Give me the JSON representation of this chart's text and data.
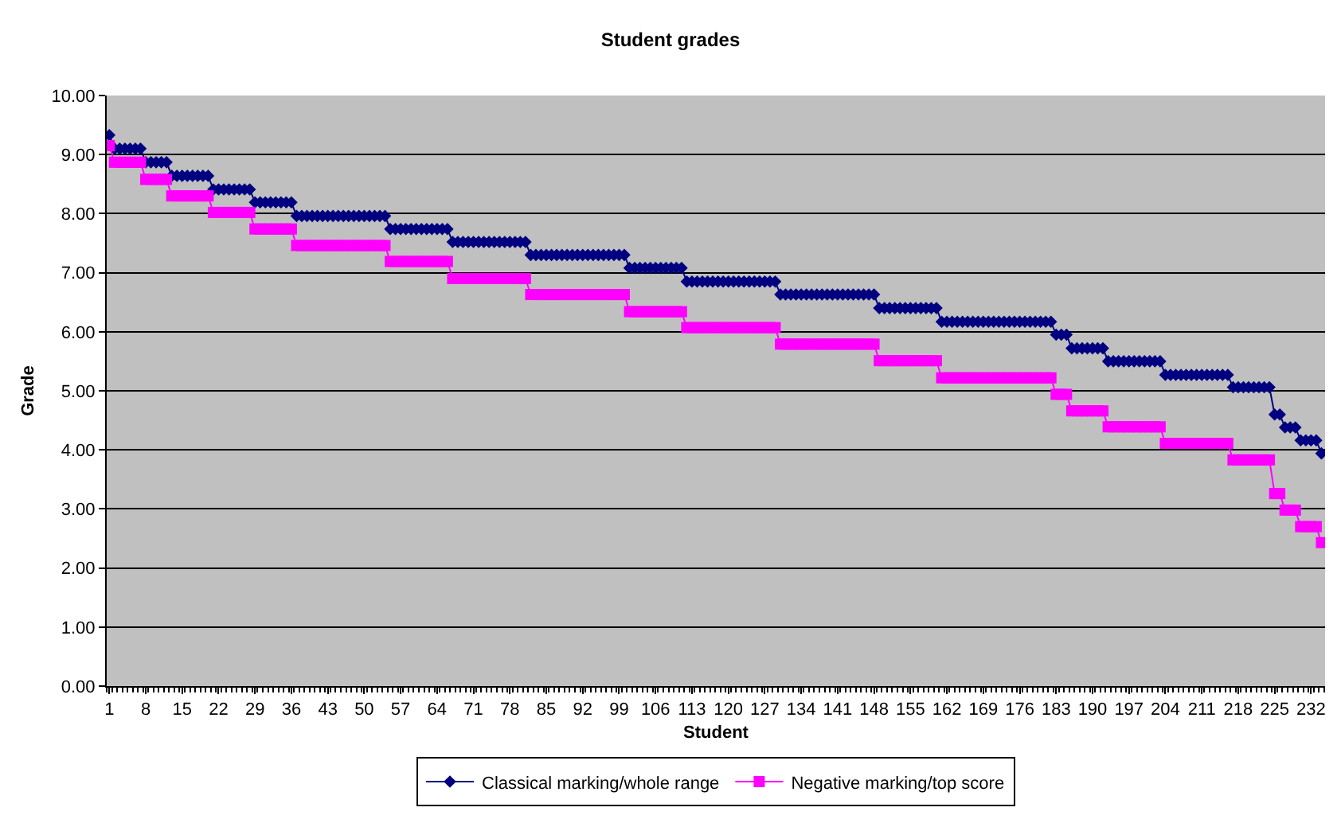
{
  "chart_data": {
    "type": "line",
    "title": "Student grades",
    "xlabel": "Student",
    "ylabel": "Grade",
    "x": [
      1,
      2,
      3,
      4,
      5,
      6,
      7,
      8,
      9,
      10,
      11,
      12,
      13,
      14,
      15,
      16,
      17,
      18,
      19,
      20,
      21,
      22,
      23,
      24,
      25,
      26,
      27,
      28,
      29,
      30,
      31,
      32,
      33,
      34,
      35,
      36,
      37,
      38,
      39,
      40,
      41,
      42,
      43,
      44,
      45,
      46,
      47,
      48,
      49,
      50,
      51,
      52,
      53,
      54,
      55,
      56,
      57,
      58,
      59,
      60,
      61,
      62,
      63,
      64,
      65,
      66,
      67,
      68,
      69,
      70,
      71,
      72,
      73,
      74,
      75,
      76,
      77,
      78,
      79,
      80,
      81,
      82,
      83,
      84,
      85,
      86,
      87,
      88,
      89,
      90,
      91,
      92,
      93,
      94,
      95,
      96,
      97,
      98,
      99,
      100,
      101,
      102,
      103,
      104,
      105,
      106,
      107,
      108,
      109,
      110,
      111,
      112,
      113,
      114,
      115,
      116,
      117,
      118,
      119,
      120,
      121,
      122,
      123,
      124,
      125,
      126,
      127,
      128,
      129,
      130,
      131,
      132,
      133,
      134,
      135,
      136,
      137,
      138,
      139,
      140,
      141,
      142,
      143,
      144,
      145,
      146,
      147,
      148,
      149,
      150,
      151,
      152,
      153,
      154,
      155,
      156,
      157,
      158,
      159,
      160,
      161,
      162,
      163,
      164,
      165,
      166,
      167,
      168,
      169,
      170,
      171,
      172,
      173,
      174,
      175,
      176,
      177,
      178,
      179,
      180,
      181,
      182,
      183,
      184,
      185,
      186,
      187,
      188,
      189,
      190,
      191,
      192,
      193,
      194,
      195,
      196,
      197,
      198,
      199,
      200,
      201,
      202,
      203,
      204,
      205,
      206,
      207,
      208,
      209,
      210,
      211,
      212,
      213,
      214,
      215,
      216,
      217,
      218,
      219,
      220,
      221,
      222,
      223,
      224,
      225,
      226,
      227,
      228,
      229,
      230,
      231,
      232,
      233,
      234
    ],
    "series": [
      {
        "name": "Classical marking/whole range",
        "color": "#000080",
        "marker": "diamond",
        "values": [
          9.33,
          9.1,
          9.1,
          9.1,
          9.1,
          9.1,
          9.1,
          8.87,
          8.87,
          8.87,
          8.87,
          8.87,
          8.64,
          8.64,
          8.64,
          8.64,
          8.64,
          8.64,
          8.64,
          8.64,
          8.41,
          8.41,
          8.41,
          8.41,
          8.41,
          8.41,
          8.41,
          8.41,
          8.19,
          8.19,
          8.19,
          8.19,
          8.19,
          8.19,
          8.19,
          8.19,
          7.96,
          7.96,
          7.96,
          7.96,
          7.96,
          7.96,
          7.96,
          7.96,
          7.96,
          7.96,
          7.96,
          7.96,
          7.96,
          7.96,
          7.96,
          7.96,
          7.96,
          7.96,
          7.74,
          7.74,
          7.74,
          7.74,
          7.74,
          7.74,
          7.74,
          7.74,
          7.74,
          7.74,
          7.74,
          7.74,
          7.52,
          7.52,
          7.52,
          7.52,
          7.52,
          7.52,
          7.52,
          7.52,
          7.52,
          7.52,
          7.52,
          7.52,
          7.52,
          7.52,
          7.52,
          7.3,
          7.3,
          7.3,
          7.3,
          7.3,
          7.3,
          7.3,
          7.3,
          7.3,
          7.3,
          7.3,
          7.3,
          7.3,
          7.3,
          7.3,
          7.3,
          7.3,
          7.3,
          7.3,
          7.08,
          7.08,
          7.08,
          7.08,
          7.08,
          7.08,
          7.08,
          7.08,
          7.08,
          7.08,
          7.08,
          6.85,
          6.85,
          6.85,
          6.85,
          6.85,
          6.85,
          6.85,
          6.85,
          6.85,
          6.85,
          6.85,
          6.85,
          6.85,
          6.85,
          6.85,
          6.85,
          6.85,
          6.85,
          6.63,
          6.63,
          6.63,
          6.63,
          6.63,
          6.63,
          6.63,
          6.63,
          6.63,
          6.63,
          6.63,
          6.63,
          6.63,
          6.63,
          6.63,
          6.63,
          6.63,
          6.63,
          6.63,
          6.4,
          6.4,
          6.4,
          6.4,
          6.4,
          6.4,
          6.4,
          6.4,
          6.4,
          6.4,
          6.4,
          6.4,
          6.17,
          6.17,
          6.17,
          6.17,
          6.17,
          6.17,
          6.17,
          6.17,
          6.17,
          6.17,
          6.17,
          6.17,
          6.17,
          6.17,
          6.17,
          6.17,
          6.17,
          6.17,
          6.17,
          6.17,
          6.17,
          6.17,
          5.95,
          5.95,
          5.95,
          5.72,
          5.72,
          5.72,
          5.72,
          5.72,
          5.72,
          5.72,
          5.5,
          5.5,
          5.5,
          5.5,
          5.5,
          5.5,
          5.5,
          5.5,
          5.5,
          5.5,
          5.5,
          5.27,
          5.27,
          5.27,
          5.27,
          5.27,
          5.27,
          5.27,
          5.27,
          5.27,
          5.27,
          5.27,
          5.27,
          5.27,
          5.06,
          5.06,
          5.06,
          5.06,
          5.06,
          5.06,
          5.06,
          5.06,
          4.6,
          4.6,
          4.38,
          4.38,
          4.38,
          4.16,
          4.16,
          4.16,
          4.16,
          3.94
        ]
      },
      {
        "name": "Negative marking/top score",
        "color": "#ff00ff",
        "marker": "square",
        "values": [
          9.15,
          8.87,
          8.87,
          8.87,
          8.87,
          8.87,
          8.87,
          8.58,
          8.58,
          8.58,
          8.58,
          8.58,
          8.3,
          8.3,
          8.3,
          8.3,
          8.3,
          8.3,
          8.3,
          8.3,
          8.02,
          8.02,
          8.02,
          8.02,
          8.02,
          8.02,
          8.02,
          8.02,
          7.74,
          7.74,
          7.74,
          7.74,
          7.74,
          7.74,
          7.74,
          7.74,
          7.46,
          7.46,
          7.46,
          7.46,
          7.46,
          7.46,
          7.46,
          7.46,
          7.46,
          7.46,
          7.46,
          7.46,
          7.46,
          7.46,
          7.46,
          7.46,
          7.46,
          7.46,
          7.19,
          7.19,
          7.19,
          7.19,
          7.19,
          7.19,
          7.19,
          7.19,
          7.19,
          7.19,
          7.19,
          7.19,
          6.9,
          6.9,
          6.9,
          6.9,
          6.9,
          6.9,
          6.9,
          6.9,
          6.9,
          6.9,
          6.9,
          6.9,
          6.9,
          6.9,
          6.9,
          6.63,
          6.63,
          6.63,
          6.63,
          6.63,
          6.63,
          6.63,
          6.63,
          6.63,
          6.63,
          6.63,
          6.63,
          6.63,
          6.63,
          6.63,
          6.63,
          6.63,
          6.63,
          6.63,
          6.34,
          6.34,
          6.34,
          6.34,
          6.34,
          6.34,
          6.34,
          6.34,
          6.34,
          6.34,
          6.34,
          6.07,
          6.07,
          6.07,
          6.07,
          6.07,
          6.07,
          6.07,
          6.07,
          6.07,
          6.07,
          6.07,
          6.07,
          6.07,
          6.07,
          6.07,
          6.07,
          6.07,
          6.07,
          5.79,
          5.79,
          5.79,
          5.79,
          5.79,
          5.79,
          5.79,
          5.79,
          5.79,
          5.79,
          5.79,
          5.79,
          5.79,
          5.79,
          5.79,
          5.79,
          5.79,
          5.79,
          5.79,
          5.51,
          5.51,
          5.51,
          5.51,
          5.51,
          5.51,
          5.51,
          5.51,
          5.51,
          5.51,
          5.51,
          5.51,
          5.22,
          5.22,
          5.22,
          5.22,
          5.22,
          5.22,
          5.22,
          5.22,
          5.22,
          5.22,
          5.22,
          5.22,
          5.22,
          5.22,
          5.22,
          5.22,
          5.22,
          5.22,
          5.22,
          5.22,
          5.22,
          5.22,
          4.94,
          4.94,
          4.94,
          4.66,
          4.66,
          4.66,
          4.66,
          4.66,
          4.66,
          4.66,
          4.39,
          4.39,
          4.39,
          4.39,
          4.39,
          4.39,
          4.39,
          4.39,
          4.39,
          4.39,
          4.39,
          4.11,
          4.11,
          4.11,
          4.11,
          4.11,
          4.11,
          4.11,
          4.11,
          4.11,
          4.11,
          4.11,
          4.11,
          4.11,
          3.83,
          3.83,
          3.83,
          3.83,
          3.83,
          3.83,
          3.83,
          3.83,
          3.26,
          3.26,
          2.98,
          2.98,
          2.98,
          2.7,
          2.7,
          2.7,
          2.7,
          2.43
        ]
      }
    ],
    "xlim": [
      0.5,
      234.7
    ],
    "xticks": [
      1,
      8,
      15,
      22,
      29,
      36,
      43,
      50,
      57,
      64,
      71,
      78,
      85,
      92,
      99,
      106,
      113,
      120,
      127,
      134,
      141,
      148,
      155,
      162,
      169,
      176,
      183,
      190,
      197,
      204,
      211,
      218,
      225,
      232
    ],
    "ylim": [
      0,
      10
    ],
    "yticks": [
      {
        "value": 0,
        "label": "0.00"
      },
      {
        "value": 1,
        "label": "1.00"
      },
      {
        "value": 2,
        "label": "2.00"
      },
      {
        "value": 3,
        "label": "3.00"
      },
      {
        "value": 4,
        "label": "4.00"
      },
      {
        "value": 5,
        "label": "5.00"
      },
      {
        "value": 6,
        "label": "6.00"
      },
      {
        "value": 7,
        "label": "7.00"
      },
      {
        "value": 8,
        "label": "8.00"
      },
      {
        "value": 9,
        "label": "9.00"
      },
      {
        "value": 10,
        "label": "10.00"
      }
    ],
    "grid": "y",
    "legend": "bottom",
    "line_style": "solid"
  }
}
